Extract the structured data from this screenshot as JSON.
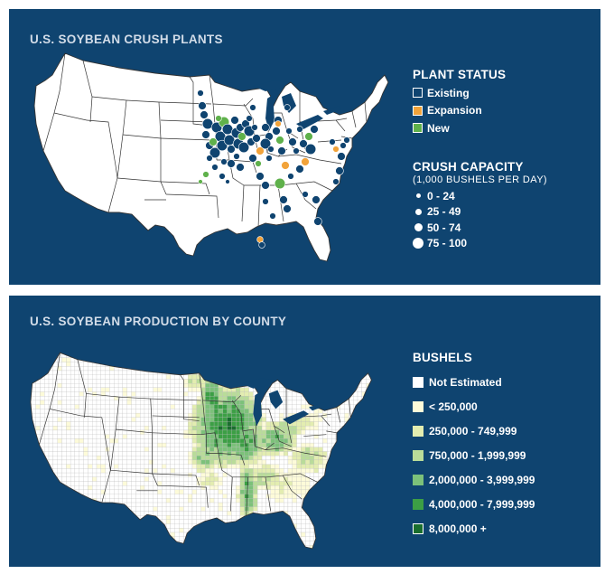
{
  "panel_top": {
    "title": "U.S. SOYBEAN CRUSH PLANTS",
    "status_heading": "PLANT STATUS",
    "status_items": [
      {
        "label": "Existing",
        "color": "#0f4470"
      },
      {
        "label": "Expansion",
        "color": "#f2a33a"
      },
      {
        "label": "New",
        "color": "#5fb14b"
      }
    ],
    "capacity_heading": "CRUSH CAPACITY",
    "capacity_sub": "(1,000 BUSHELS PER DAY)",
    "capacity_items": [
      {
        "label": "0 - 24"
      },
      {
        "label": "25 - 49"
      },
      {
        "label": "50 - 74"
      },
      {
        "label": "75 - 100"
      }
    ]
  },
  "panel_bottom": {
    "title": "U.S. SOYBEAN PRODUCTION BY COUNTY",
    "legend_heading": "BUSHELS",
    "legend_items": [
      {
        "label": "Not Estimated",
        "color": "#ffffff"
      },
      {
        "label": "< 250,000",
        "color": "#fdfbd9"
      },
      {
        "label": "250,000 - 749,999",
        "color": "#e3edb0"
      },
      {
        "label": "750,000 - 1,999,999",
        "color": "#b9dc99"
      },
      {
        "label": "2,000,000 - 3,999,999",
        "color": "#7cc17a"
      },
      {
        "label": "4,000,000 - 7,999,999",
        "color": "#3c9f45"
      },
      {
        "label": "8,000,000 +",
        "color": "#1a6e2e"
      }
    ]
  },
  "colors": {
    "panel_bg": "#0f4470",
    "title_text": "#d2dce8",
    "map_fill": "#ffffff",
    "state_border": "#333333",
    "county_border": "#bbbbbb"
  }
}
